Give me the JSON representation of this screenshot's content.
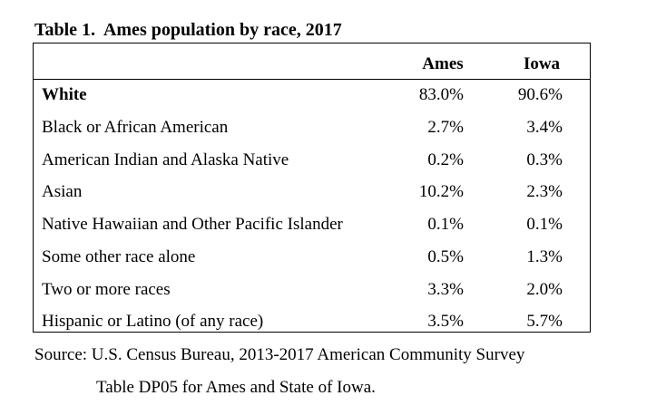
{
  "title": "Table 1.  Ames population by race, 2017",
  "table": {
    "columns": [
      "Ames",
      "Iowa"
    ],
    "rows": [
      {
        "label": "White",
        "ames": "83.0%",
        "iowa": "90.6%"
      },
      {
        "label": "Black or African American",
        "ames": "2.7%",
        "iowa": "3.4%"
      },
      {
        "label": "American Indian and Alaska Native",
        "ames": "0.2%",
        "iowa": "0.3%"
      },
      {
        "label": "Asian",
        "ames": "10.2%",
        "iowa": "2.3%"
      },
      {
        "label": "Native Hawaiian and Other Pacific Islander",
        "ames": "0.1%",
        "iowa": "0.1%"
      },
      {
        "label": "Some other race alone",
        "ames": "0.5%",
        "iowa": "1.3%"
      },
      {
        "label": "Two or more races",
        "ames": "3.3%",
        "iowa": "2.0%"
      },
      {
        "label": "Hispanic or Latino (of any race)",
        "ames": "3.5%",
        "iowa": "5.7%"
      }
    ]
  },
  "source": {
    "line1": "Source: U.S. Census Bureau, 2013-2017 American Community Survey",
    "line2": "Table DP05 for Ames and State of Iowa."
  }
}
